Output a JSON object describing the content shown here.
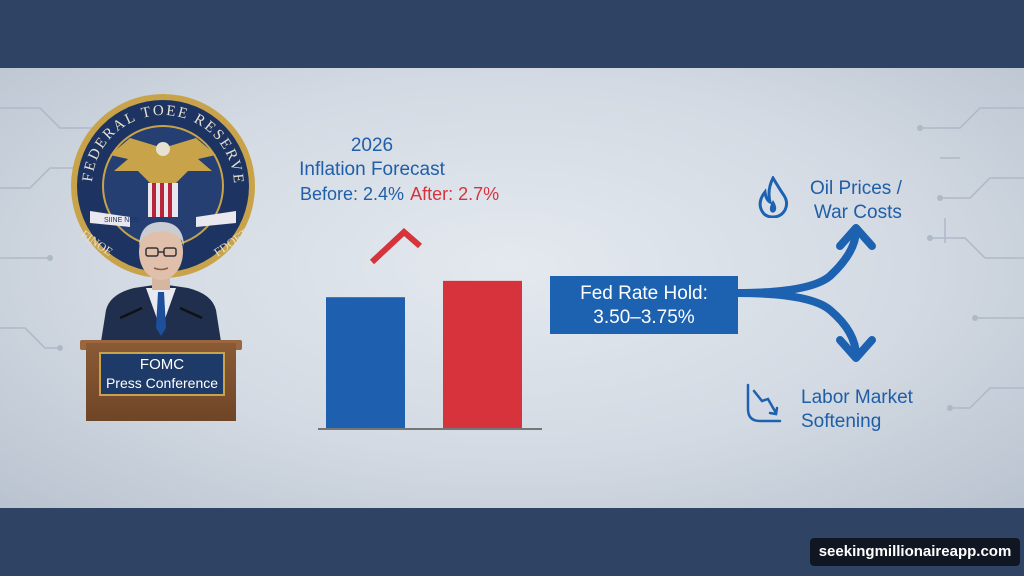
{
  "seal": {
    "ring_text": "FEDERAL TOEE RESERVE",
    "lower_text_left": "FINOE",
    "lower_text_right": "FDOET",
    "ribbon_text": "SIINE   NED"
  },
  "podium": {
    "line1": "FOMC",
    "line2": "Press Conference"
  },
  "chart": {
    "title_line1": "2026",
    "title_line2": "Inflation Forecast",
    "before_label": "Before: 2.4%",
    "after_label": "After: 2.7%"
  },
  "chart_data": {
    "type": "bar",
    "categories": [
      "Before",
      "After"
    ],
    "values": [
      2.4,
      2.7
    ],
    "colors": [
      "#1f5fb0",
      "#d6333c"
    ],
    "title": "2026 Inflation Forecast",
    "trend_arrow": "up"
  },
  "rate": {
    "line1": "Fed Rate Hold:",
    "line2": "3.50–3.75%"
  },
  "outcomes": {
    "oil_line1": "Oil Prices /",
    "oil_line2": "War Costs",
    "oil_icon": "flame-icon",
    "labor_line1": "Labor Market",
    "labor_line2": "Softening",
    "labor_icon": "downtrend-icon"
  },
  "watermark": "seekingmillionaireapp.com",
  "colors": {
    "band": "#2f4465",
    "accent_blue": "#1f5ea8",
    "accent_red": "#d6333c"
  }
}
